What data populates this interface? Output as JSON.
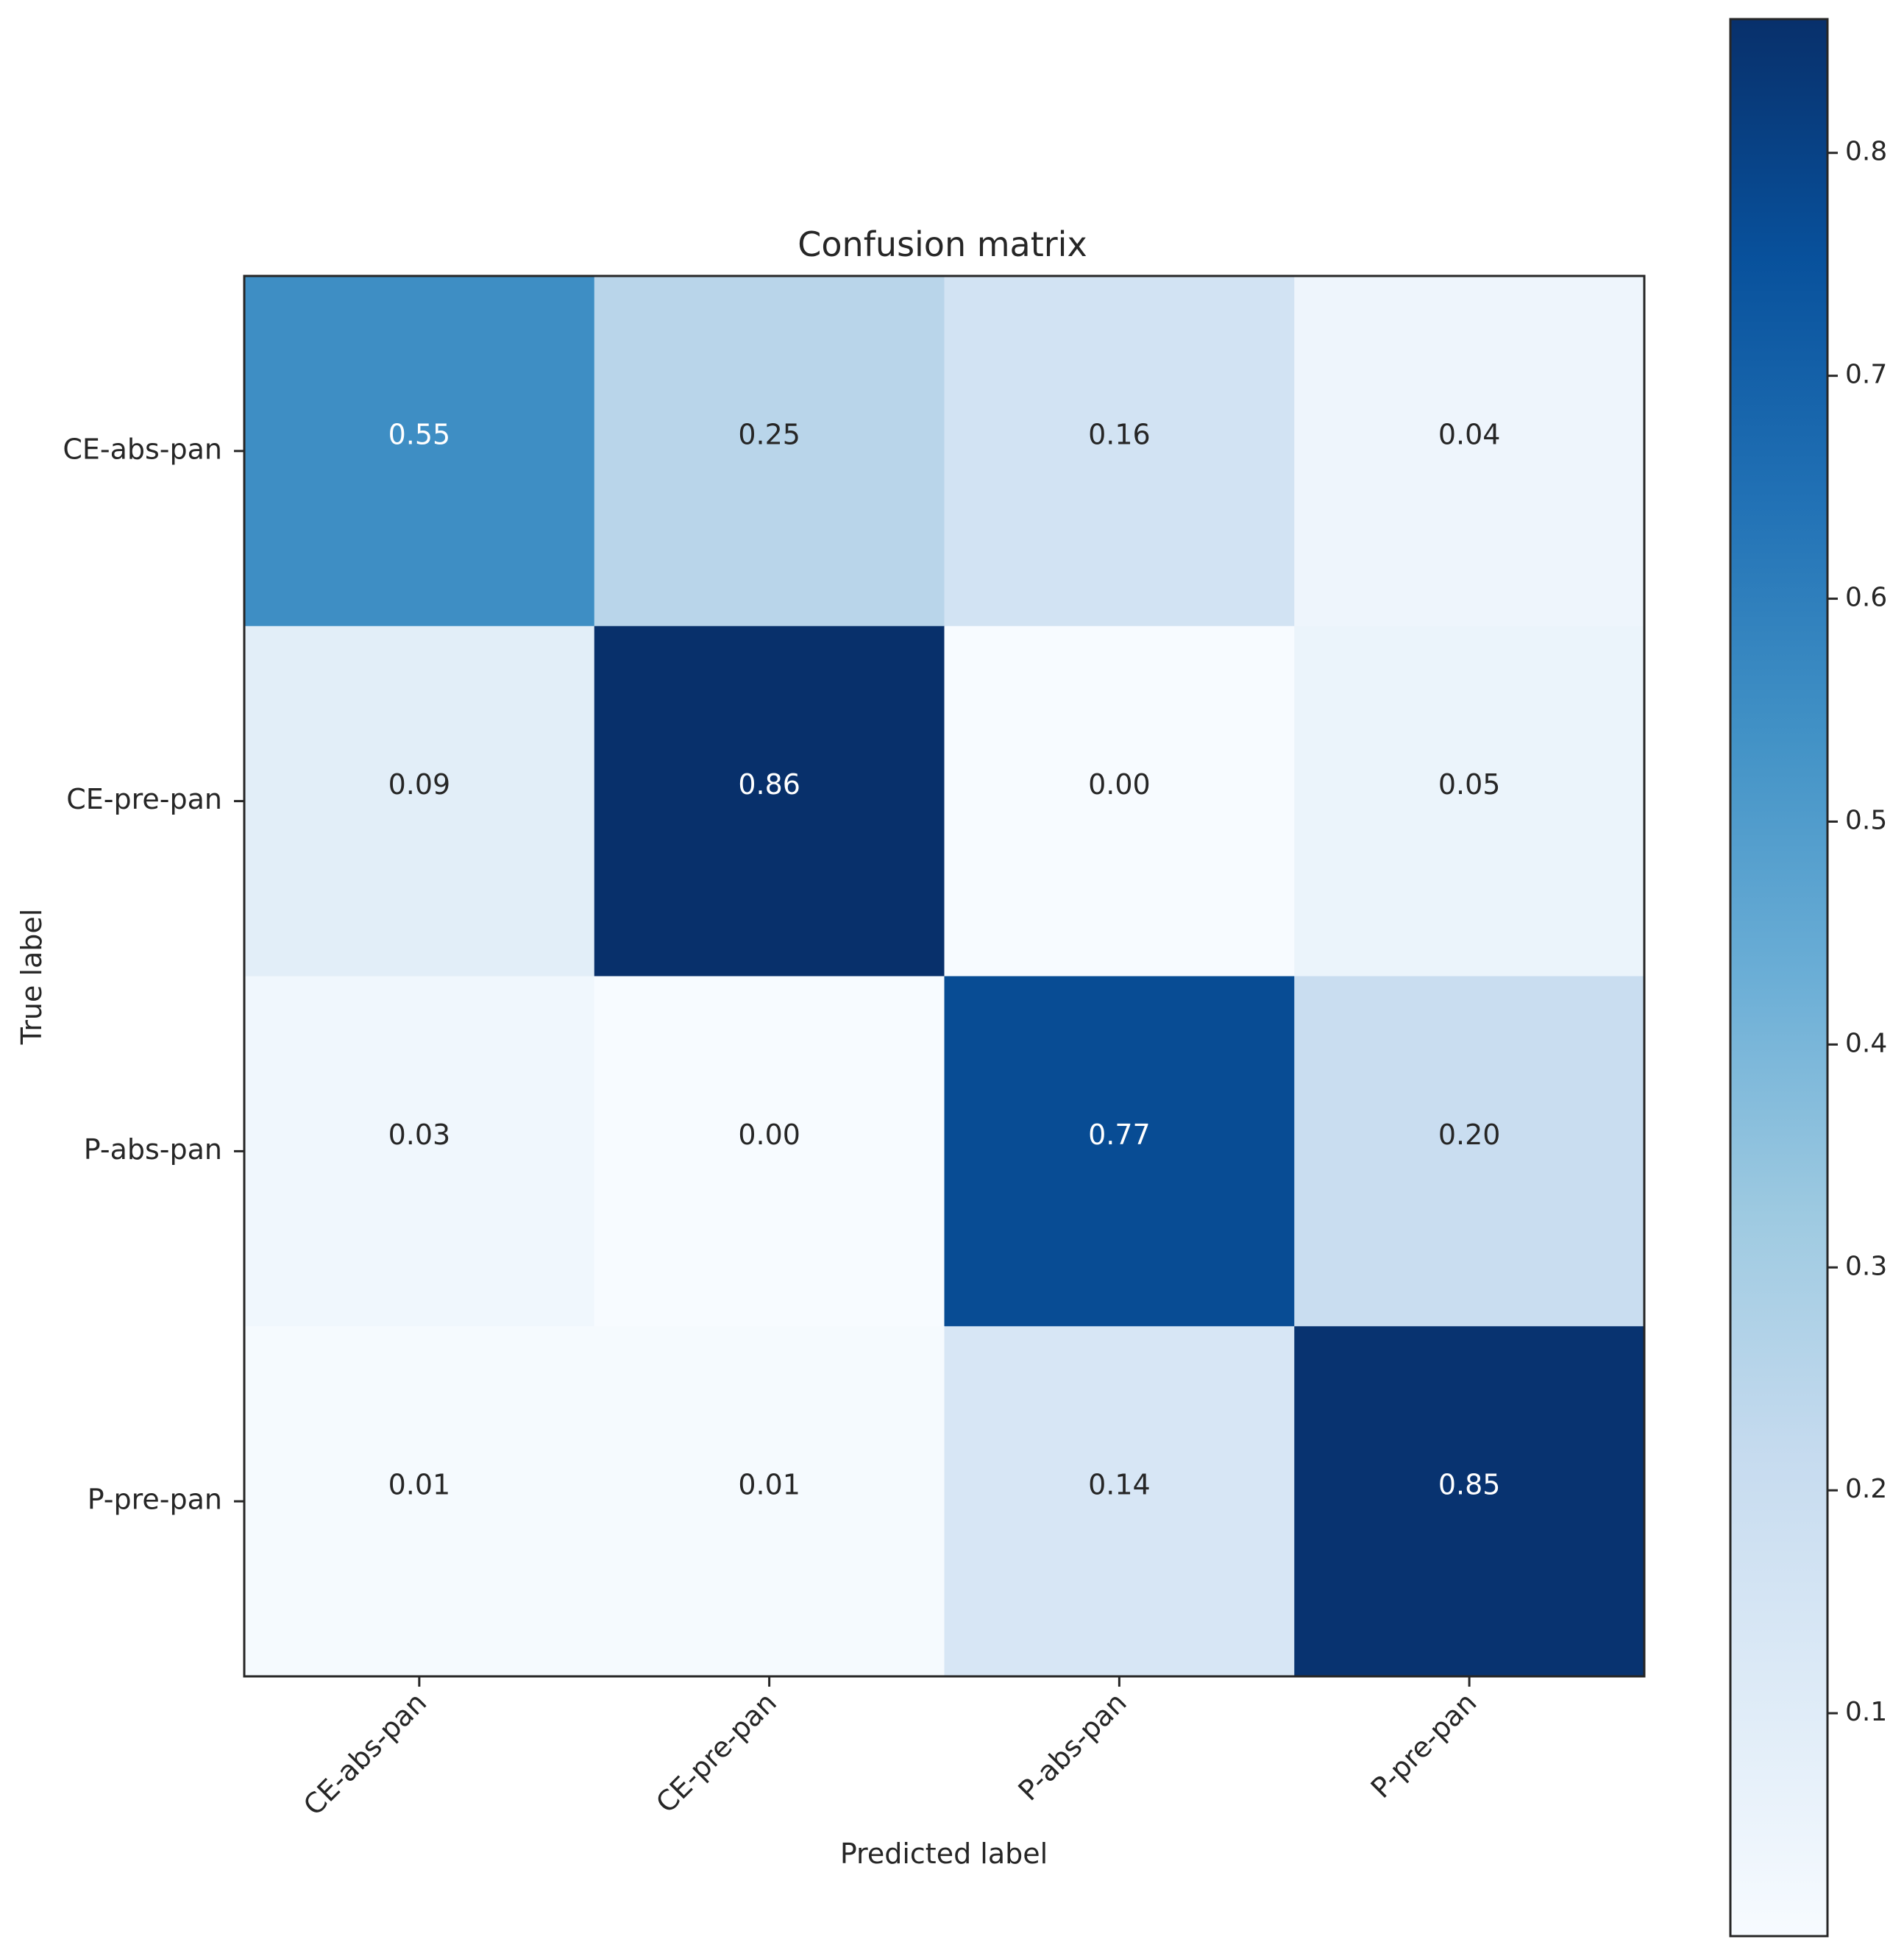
{
  "chart_data": {
    "type": "heatmap",
    "title": "Confusion matrix",
    "xlabel": "Predicted label",
    "ylabel": "True label",
    "x_categories": [
      "CE-abs-pan",
      "CE-pre-pan",
      "P-abs-pan",
      "P-pre-pan"
    ],
    "y_categories": [
      "CE-abs-pan",
      "CE-pre-pan",
      "P-abs-pan",
      "P-pre-pan"
    ],
    "values": [
      [
        0.55,
        0.25,
        0.16,
        0.04
      ],
      [
        0.09,
        0.86,
        0.0,
        0.05
      ],
      [
        0.03,
        0.0,
        0.77,
        0.2
      ],
      [
        0.01,
        0.01,
        0.14,
        0.85
      ]
    ],
    "cell_labels": [
      [
        "0.55",
        "0.25",
        "0.16",
        "0.04"
      ],
      [
        "0.09",
        "0.86",
        "0.00",
        "0.05"
      ],
      [
        "0.03",
        "0.00",
        "0.77",
        "0.20"
      ],
      [
        "0.01",
        "0.01",
        "0.14",
        "0.85"
      ]
    ],
    "colormap": "Blues",
    "colorbar": {
      "range": [
        0.0,
        0.86
      ],
      "ticks": [
        0.1,
        0.2,
        0.3,
        0.4,
        0.5,
        0.6,
        0.7,
        0.8
      ],
      "tick_labels": [
        "0.1",
        "0.2",
        "0.3",
        "0.4",
        "0.5",
        "0.6",
        "0.7",
        "0.8"
      ]
    },
    "colors": {
      "text_dark": "#262626",
      "text_light": "#ffffff",
      "frame": "#262626"
    }
  }
}
